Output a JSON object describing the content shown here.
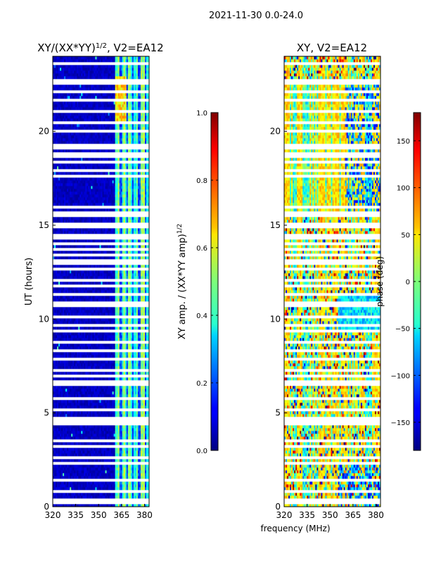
{
  "suptitle": "2021-11-30 0.0-24.0",
  "chart_data": [
    {
      "type": "heatmap",
      "title_prefix": "XY/(XX*YY)",
      "title_exponent": "1/2",
      "title_suffix": ", V2=EA12",
      "xlabel": "",
      "ylabel": "UT (hours)",
      "xlim": [
        320,
        383
      ],
      "ylim": [
        0,
        24
      ],
      "xticks": [
        320,
        335,
        350,
        365,
        380
      ],
      "yticks": [
        0,
        5,
        10,
        15,
        20
      ],
      "colorbar": {
        "label_prefix": "XY amp. / (XX*YY amp)",
        "label_exponent": "1/2",
        "range": [
          0.0,
          1.0
        ],
        "ticks": [
          0.0,
          0.2,
          0.4,
          0.6,
          0.8,
          1.0
        ],
        "tick_labels": [
          "0.0",
          "0.2",
          "0.4",
          "0.6",
          "0.8",
          "1.0"
        ],
        "colormap": "jet"
      },
      "description": "amplitude low (~0.05) below 360 MHz; striped bands 0.3-0.6 between 361 and 383 MHz"
    },
    {
      "type": "heatmap",
      "title": "XY, V2=EA12",
      "xlabel": "frequency (MHz)",
      "ylabel": "",
      "xlim": [
        320,
        383
      ],
      "ylim": [
        0,
        24
      ],
      "xticks": [
        320,
        335,
        350,
        365,
        380
      ],
      "yticks": [
        0,
        5,
        10,
        15,
        20
      ],
      "colorbar": {
        "label": "phase (deg)",
        "range": [
          -180,
          180
        ],
        "ticks": [
          -150,
          -100,
          -50,
          0,
          50,
          100,
          150
        ],
        "tick_labels": [
          "−150",
          "−100",
          "−50",
          "0",
          "50",
          "100",
          "150"
        ],
        "colormap": "jet"
      },
      "description": "noisy phase, mostly yellow/orange (~30-60 deg) with cyan/blue vertical streaks"
    }
  ],
  "gap_hours": [
    0.2,
    0.4,
    0.85,
    1.45,
    2.3,
    2.65,
    3.3,
    3.5,
    4.4,
    4.6,
    4.75,
    5.2,
    5.7,
    6.55,
    6.7,
    6.95,
    7.2,
    7.85,
    8.3,
    8.85,
    9.3,
    9.7,
    10.1,
    10.75,
    10.9,
    11.25,
    11.35,
    11.8,
    12.05,
    12.6,
    12.9,
    13.2,
    13.45,
    13.7,
    14.0,
    14.25,
    14.45,
    14.85,
    15.1,
    15.5,
    15.65,
    16.0,
    17.55,
    17.95,
    18.35,
    18.7,
    18.85,
    19.1,
    19.25,
    19.95,
    20.05,
    20.5,
    21.05,
    21.6,
    22.15,
    22.55,
    22.65,
    23.55
  ]
}
